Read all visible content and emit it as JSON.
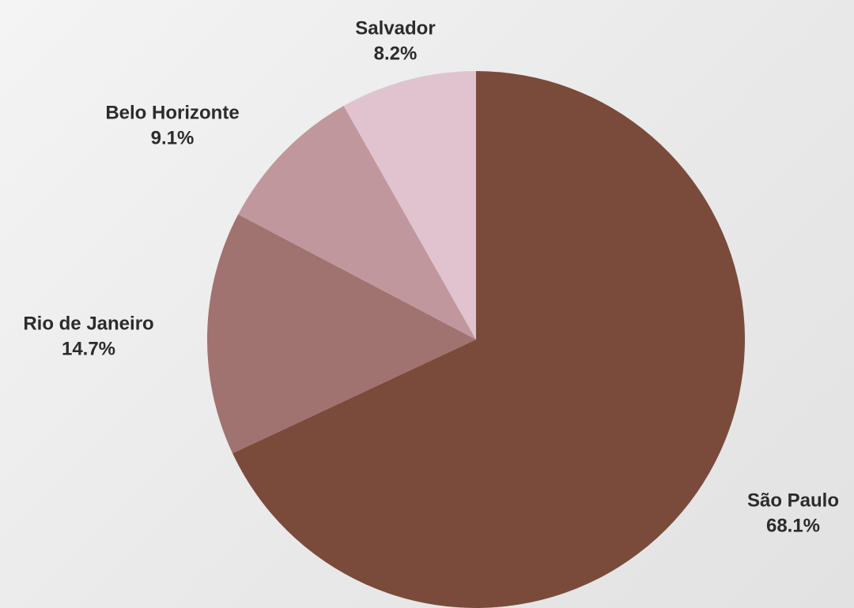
{
  "chart_data": {
    "type": "pie",
    "title": "",
    "start_angle_deg": 0,
    "direction": "clockwise",
    "slices": [
      {
        "label": "São Paulo",
        "value": 68.1,
        "percent_label": "68.1%",
        "color": "#7a4b3b"
      },
      {
        "label": "Rio de Janeiro",
        "value": 14.7,
        "percent_label": "14.7%",
        "color": "#a07270"
      },
      {
        "label": "Belo Horizonte",
        "value": 9.1,
        "percent_label": "9.1%",
        "color": "#c1979e"
      },
      {
        "label": "Salvador",
        "value": 8.2,
        "percent_label": "8.2%",
        "color": "#dfc4d0"
      }
    ]
  }
}
